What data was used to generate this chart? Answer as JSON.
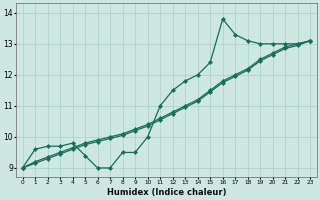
{
  "xlabel": "Humidex (Indice chaleur)",
  "bg_color": "#cce8e0",
  "grid_color": "#aacfc8",
  "line_color": "#1a6b5a",
  "xlim": [
    -0.5,
    23.5
  ],
  "ylim": [
    8.7,
    14.3
  ],
  "yticks": [
    9,
    10,
    11,
    12,
    13,
    14
  ],
  "xticks": [
    0,
    1,
    2,
    3,
    4,
    5,
    6,
    7,
    8,
    9,
    10,
    11,
    12,
    13,
    14,
    15,
    16,
    17,
    18,
    19,
    20,
    21,
    22,
    23
  ],
  "hours": [
    0,
    1,
    2,
    3,
    4,
    5,
    6,
    7,
    8,
    9,
    10,
    11,
    12,
    13,
    14,
    15,
    16,
    17,
    18,
    19,
    20,
    21,
    22,
    23
  ],
  "line_actual": [
    9.0,
    9.6,
    9.7,
    9.7,
    9.8,
    9.4,
    9.0,
    9.0,
    9.5,
    9.5,
    10.0,
    11.0,
    11.5,
    11.8,
    12.0,
    12.4,
    13.8,
    13.3,
    13.1,
    13.0,
    13.0,
    13.0,
    13.0,
    13.1
  ],
  "line_reg1": [
    9.0,
    9.2,
    9.35,
    9.5,
    9.65,
    9.8,
    9.9,
    10.0,
    10.1,
    10.25,
    10.4,
    10.6,
    10.8,
    11.0,
    11.2,
    11.5,
    11.8,
    12.0,
    12.2,
    12.5,
    12.7,
    12.9,
    13.0,
    13.1
  ],
  "line_reg2": [
    9.0,
    9.15,
    9.3,
    9.45,
    9.6,
    9.75,
    9.85,
    9.95,
    10.05,
    10.2,
    10.35,
    10.55,
    10.75,
    10.95,
    11.15,
    11.45,
    11.75,
    11.95,
    12.15,
    12.45,
    12.65,
    12.85,
    12.95,
    13.1
  ]
}
